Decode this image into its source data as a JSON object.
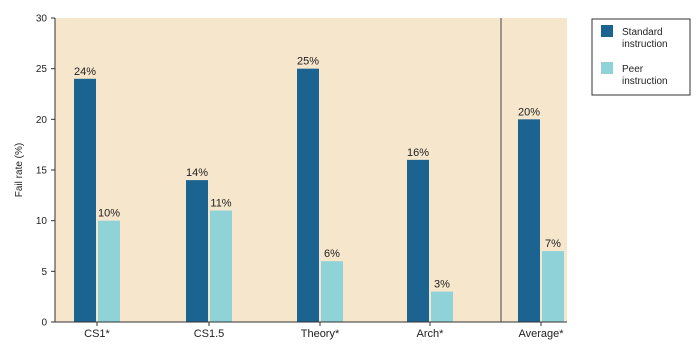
{
  "chart_data": {
    "type": "bar",
    "ylabel": "Fail rate (%)",
    "ylim": [
      0,
      30
    ],
    "yticks": [
      0,
      5,
      10,
      15,
      20,
      25,
      30
    ],
    "categories": [
      "CS1*",
      "CS1.5",
      "Theory*",
      "Arch*",
      "Average*"
    ],
    "series": [
      {
        "name": "Standard instruction",
        "values": [
          24,
          14,
          25,
          16,
          20
        ],
        "labels": [
          "24%",
          "14%",
          "25%",
          "16%",
          "20%"
        ]
      },
      {
        "name": "Peer instruction",
        "values": [
          10,
          11,
          6,
          3,
          7
        ],
        "labels": [
          "10%",
          "11%",
          "6%",
          "3%",
          "7%"
        ]
      }
    ],
    "legend_position": "top-right",
    "separator_before_last_category": true,
    "colors": {
      "standard": "#1b6390",
      "peer": "#8fd3d8",
      "plot_background": "#f6e6cc",
      "axis": "#333333"
    }
  }
}
